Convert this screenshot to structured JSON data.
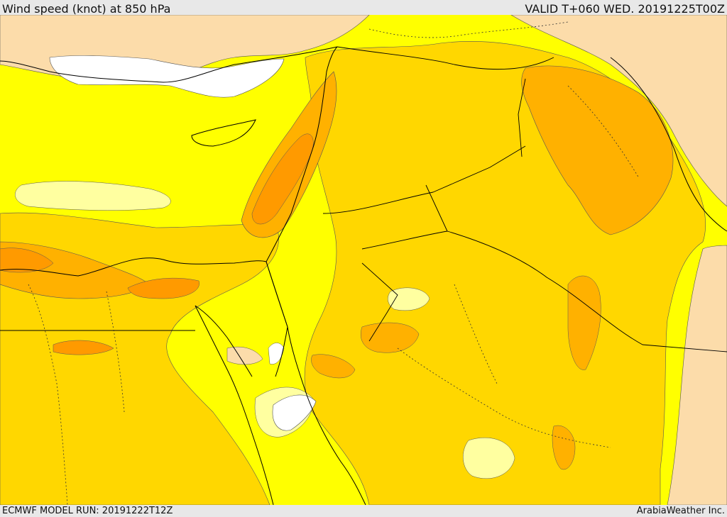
{
  "header": {
    "title": "Wind speed (knot) at 850 hPa",
    "valid": "VALID T+060 WED. 20191225T00Z"
  },
  "footer": {
    "model_run": "ECMWF MODEL RUN: 20191222T12Z",
    "credit": "ArabiaWeather Inc."
  },
  "colors": {
    "sea_background": "#ffff00",
    "band_pale": "#ffffa0",
    "band_gold": "#ffd700",
    "band_orange_light": "#ffb100",
    "band_orange": "#ff9a00",
    "calm_peach": "#fcdcaa",
    "no_data_white": "#ffffff",
    "border_line": "#000000"
  }
}
